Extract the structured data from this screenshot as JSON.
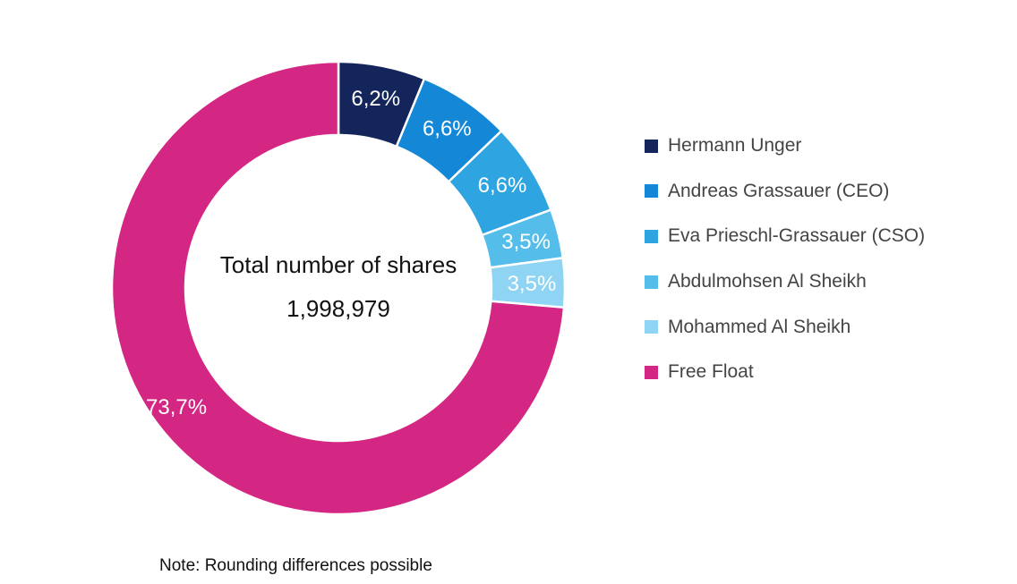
{
  "chart_data": {
    "type": "pie",
    "variant": "donut",
    "center_title": "Total number of shares",
    "center_value": "1,998,979",
    "slices": [
      {
        "name": "Hermann Unger",
        "value": 6.2,
        "label": "6,2%",
        "color": "#13255b"
      },
      {
        "name": "Andreas Grassauer (CEO)",
        "value": 6.6,
        "label": "6,6%",
        "color": "#1488d6"
      },
      {
        "name": "Eva Prieschl-Grassauer (CSO)",
        "value": 6.6,
        "label": "6,6%",
        "color": "#2ea4e0"
      },
      {
        "name": "Abdulmohsen Al Sheikh",
        "value": 3.5,
        "label": "3,5%",
        "color": "#55bdea"
      },
      {
        "name": "Mohammed Al Sheikh",
        "value": 3.5,
        "label": "3,5%",
        "color": "#8fd5f3"
      },
      {
        "name": "Free Float",
        "value": 73.7,
        "label": "73,7%",
        "color": "#d42683"
      }
    ],
    "legend_position": "right",
    "note": "Note: Rounding differences possible"
  }
}
